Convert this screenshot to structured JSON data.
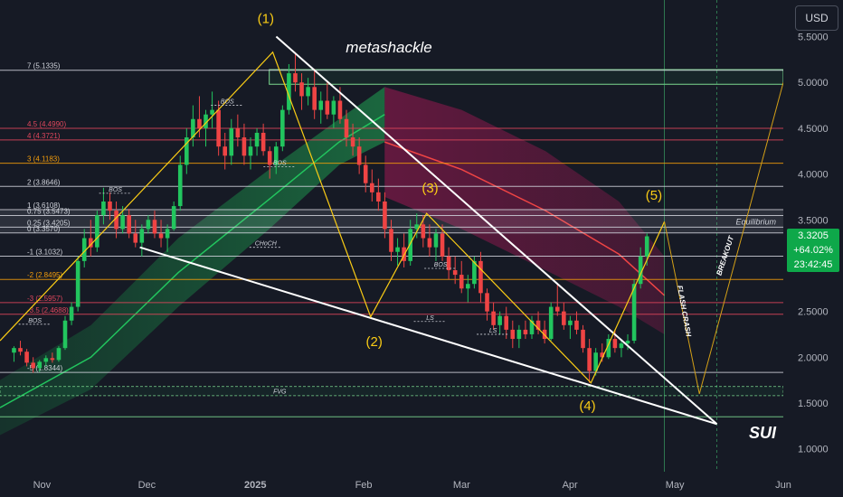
{
  "currency_button": "USD",
  "brand": "metashackle",
  "symbol": "SUI",
  "price_tag": {
    "price": "3.3205",
    "change": "+64.02%",
    "countdown": "23:42:45"
  },
  "colors": {
    "background": "#161a25",
    "up": "#22c55e",
    "down": "#ef4444",
    "fib_white": "#d1d4dc",
    "fib_red": "#e0475c",
    "fib_orange": "#f59e0b",
    "fib_green": "#7bd88f",
    "wave": "#facc15"
  },
  "chart_data": {
    "type": "candlestick",
    "symbol": "SUI",
    "y_axis_ticks": [
      1.0,
      1.5,
      2.0,
      2.5,
      3.0,
      3.5,
      4.0,
      4.5,
      5.0,
      5.5
    ],
    "ylim": [
      0.75,
      5.9
    ],
    "x_axis_labels": [
      "Nov",
      "Dec",
      "2025",
      "Feb",
      "Mar",
      "Apr",
      "May",
      "Jun"
    ],
    "x_label_dates": [
      "2024-11-01",
      "2024-12-01",
      "2025-01-01",
      "2025-02-01",
      "2025-03-01",
      "2025-04-01",
      "2025-05-01",
      "2025-06-01"
    ],
    "xlim": [
      "2024-10-20",
      "2025-06-01"
    ],
    "last_price": 3.3205,
    "change_pct": "+64.02%",
    "fib_levels": [
      {
        "label": "7 (5.1335)",
        "value": 5.1335,
        "color": "white"
      },
      {
        "label": "4.5 (4.4990)",
        "value": 4.499,
        "color": "red"
      },
      {
        "label": "4 (4.3721)",
        "value": 4.3721,
        "color": "red"
      },
      {
        "label": "3 (4.1183)",
        "value": 4.1183,
        "color": "orange"
      },
      {
        "label": "2 (3.8646)",
        "value": 3.8646,
        "color": "white"
      },
      {
        "label": "1 (3.6108)",
        "value": 3.6108,
        "color": "white"
      },
      {
        "label": "0.75 (3.5473)",
        "value": 3.5473,
        "color": "white"
      },
      {
        "label": "0.25 (3.4205)",
        "value": 3.4205,
        "color": "white"
      },
      {
        "label": "0 (3.3570)",
        "value": 3.357,
        "color": "white"
      },
      {
        "label": "-1 (3.1032)",
        "value": 3.1032,
        "color": "white"
      },
      {
        "label": "-2 (2.8495)",
        "value": 2.8495,
        "color": "orange"
      },
      {
        "label": "-3 (2.5957)",
        "value": 2.5957,
        "color": "red"
      },
      {
        "label": "-3.5 (2.4688)",
        "value": 2.4688,
        "color": "red"
      },
      {
        "label": "-5 (1.8344)",
        "value": 1.8344,
        "color": "white"
      }
    ],
    "wave_labels": [
      {
        "label": "(1)",
        "date": "2025-01-04",
        "value": 5.65
      },
      {
        "label": "(2)",
        "date": "2025-02-04",
        "value": 2.12
      },
      {
        "label": "(3)",
        "date": "2025-02-20",
        "value": 3.8
      },
      {
        "label": "(4)",
        "date": "2025-04-06",
        "value": 1.42
      },
      {
        "label": "(5)",
        "date": "2025-04-25",
        "value": 3.72
      }
    ],
    "wave_path": [
      {
        "date": "2024-10-20",
        "value": 2.18
      },
      {
        "date": "2025-01-06",
        "value": 5.33
      },
      {
        "date": "2025-02-03",
        "value": 2.44
      },
      {
        "date": "2025-02-19",
        "value": 3.57
      },
      {
        "date": "2025-04-07",
        "value": 1.72
      },
      {
        "date": "2025-04-28",
        "value": 3.48
      }
    ],
    "projection_path": [
      {
        "date": "2025-04-28",
        "value": 3.48
      },
      {
        "date": "2025-05-08",
        "value": 1.6
      },
      {
        "date": "2025-06-01",
        "value": 5.0
      }
    ],
    "projection_labels": [
      {
        "label": "FLASH CRASH",
        "date": "2025-05-03",
        "value": 2.5
      },
      {
        "label": "BREAKOUT",
        "date": "2025-05-16",
        "value": 3.1
      }
    ],
    "wedge_upper": [
      {
        "date": "2025-01-07",
        "value": 5.5
      },
      {
        "date": "2025-05-13",
        "value": 1.27
      }
    ],
    "wedge_lower": [
      {
        "date": "2024-11-29",
        "value": 3.2
      },
      {
        "date": "2025-05-13",
        "value": 1.27
      }
    ],
    "equilibrium": {
      "label": "Equilibrium",
      "value": 3.48
    },
    "fvg": {
      "label": "FVG",
      "low": 1.58,
      "high": 1.68
    },
    "range_box": {
      "low": 4.98,
      "high": 5.14
    },
    "annotations": [
      {
        "label": "BOS",
        "date": "2024-10-30",
        "value": 2.36
      },
      {
        "label": "BOS",
        "date": "2024-11-22",
        "value": 3.79
      },
      {
        "label": "BOS",
        "date": "2024-12-24",
        "value": 4.75
      },
      {
        "label": "BOS",
        "date": "2025-01-08",
        "value": 4.08
      },
      {
        "label": "CHoCH",
        "date": "2025-01-04",
        "value": 3.2
      },
      {
        "label": "BOS",
        "date": "2025-02-23",
        "value": 2.97
      },
      {
        "label": "LS",
        "date": "2025-02-20",
        "value": 2.39
      },
      {
        "label": "LS",
        "date": "2025-03-10",
        "value": 2.25
      }
    ],
    "candles": [
      [
        2.05,
        2.12,
        1.95,
        2.1
      ],
      [
        2.1,
        2.18,
        2.02,
        2.06
      ],
      [
        2.06,
        2.09,
        1.9,
        1.94
      ],
      [
        1.94,
        2.0,
        1.83,
        1.88
      ],
      [
        1.88,
        1.97,
        1.84,
        1.95
      ],
      [
        1.95,
        2.02,
        1.9,
        1.99
      ],
      [
        1.99,
        2.05,
        1.94,
        1.97
      ],
      [
        1.97,
        2.12,
        1.95,
        2.1
      ],
      [
        2.1,
        2.45,
        2.08,
        2.4
      ],
      [
        2.4,
        2.6,
        2.35,
        2.55
      ],
      [
        2.55,
        3.1,
        2.5,
        3.05
      ],
      [
        3.05,
        3.4,
        2.98,
        3.3
      ],
      [
        3.3,
        3.5,
        3.1,
        3.2
      ],
      [
        3.2,
        3.6,
        3.15,
        3.55
      ],
      [
        3.55,
        3.85,
        3.45,
        3.7
      ],
      [
        3.7,
        3.8,
        3.5,
        3.6
      ],
      [
        3.6,
        3.7,
        3.3,
        3.4
      ],
      [
        3.4,
        3.65,
        3.35,
        3.55
      ],
      [
        3.55,
        3.62,
        3.3,
        3.35
      ],
      [
        3.35,
        3.5,
        3.2,
        3.25
      ],
      [
        3.25,
        3.45,
        3.1,
        3.4
      ],
      [
        3.4,
        3.55,
        3.35,
        3.5
      ],
      [
        3.5,
        3.6,
        3.3,
        3.35
      ],
      [
        3.35,
        3.5,
        3.2,
        3.3
      ],
      [
        3.3,
        3.45,
        3.15,
        3.4
      ],
      [
        3.4,
        3.7,
        3.38,
        3.65
      ],
      [
        3.65,
        4.2,
        3.6,
        4.1
      ],
      [
        4.1,
        4.5,
        4.0,
        4.4
      ],
      [
        4.4,
        4.75,
        4.3,
        4.6
      ],
      [
        4.6,
        4.85,
        4.4,
        4.5
      ],
      [
        4.5,
        4.7,
        4.3,
        4.65
      ],
      [
        4.65,
        4.9,
        4.5,
        4.7
      ],
      [
        4.7,
        4.8,
        4.2,
        4.3
      ],
      [
        4.3,
        4.45,
        4.05,
        4.2
      ],
      [
        4.2,
        4.6,
        4.1,
        4.5
      ],
      [
        4.5,
        4.65,
        4.3,
        4.4
      ],
      [
        4.4,
        4.55,
        4.1,
        4.2
      ],
      [
        4.2,
        4.4,
        4.05,
        4.3
      ],
      [
        4.3,
        4.5,
        4.2,
        4.45
      ],
      [
        4.45,
        4.55,
        4.2,
        4.25
      ],
      [
        4.25,
        4.3,
        3.95,
        4.1
      ],
      [
        4.1,
        4.35,
        4.0,
        4.3
      ],
      [
        4.3,
        4.75,
        4.25,
        4.7
      ],
      [
        4.7,
        5.2,
        4.65,
        5.1
      ],
      [
        5.1,
        5.33,
        4.9,
        5.0
      ],
      [
        5.0,
        5.1,
        4.7,
        4.85
      ],
      [
        4.85,
        5.05,
        4.75,
        4.95
      ],
      [
        4.95,
        5.15,
        4.6,
        4.7
      ],
      [
        4.7,
        4.9,
        4.55,
        4.8
      ],
      [
        4.8,
        5.0,
        4.6,
        4.65
      ],
      [
        4.65,
        4.85,
        4.5,
        4.8
      ],
      [
        4.8,
        4.95,
        4.55,
        4.6
      ],
      [
        4.6,
        4.7,
        4.3,
        4.4
      ],
      [
        4.4,
        4.55,
        4.2,
        4.3
      ],
      [
        4.3,
        4.4,
        4.0,
        4.1
      ],
      [
        4.1,
        4.2,
        3.8,
        3.9
      ],
      [
        3.9,
        4.05,
        3.7,
        3.8
      ],
      [
        3.8,
        3.95,
        3.6,
        3.7
      ],
      [
        3.7,
        3.8,
        3.3,
        3.4
      ],
      [
        3.4,
        3.5,
        3.05,
        3.15
      ],
      [
        3.15,
        3.3,
        3.0,
        3.2
      ],
      [
        3.2,
        3.35,
        2.98,
        3.05
      ],
      [
        3.05,
        3.5,
        3.0,
        3.4
      ],
      [
        3.4,
        3.57,
        3.3,
        3.45
      ],
      [
        3.45,
        3.55,
        3.2,
        3.3
      ],
      [
        3.3,
        3.45,
        3.1,
        3.2
      ],
      [
        3.2,
        3.4,
        3.05,
        3.35
      ],
      [
        3.35,
        3.45,
        3.05,
        3.1
      ],
      [
        3.1,
        3.2,
        2.85,
        2.95
      ],
      [
        2.95,
        3.1,
        2.8,
        2.9
      ],
      [
        2.9,
        3.05,
        2.7,
        2.75
      ],
      [
        2.75,
        2.9,
        2.6,
        2.8
      ],
      [
        2.8,
        3.1,
        2.75,
        3.05
      ],
      [
        3.05,
        3.15,
        2.6,
        2.7
      ],
      [
        2.7,
        2.75,
        2.4,
        2.5
      ],
      [
        2.5,
        2.6,
        2.3,
        2.35
      ],
      [
        2.35,
        2.5,
        2.25,
        2.45
      ],
      [
        2.45,
        2.55,
        2.2,
        2.3
      ],
      [
        2.3,
        2.4,
        2.1,
        2.2
      ],
      [
        2.2,
        2.35,
        2.1,
        2.3
      ],
      [
        2.3,
        2.4,
        2.2,
        2.25
      ],
      [
        2.25,
        2.45,
        2.2,
        2.4
      ],
      [
        2.4,
        2.5,
        2.25,
        2.3
      ],
      [
        2.3,
        2.4,
        2.15,
        2.2
      ],
      [
        2.2,
        2.6,
        2.18,
        2.55
      ],
      [
        2.55,
        2.8,
        2.45,
        2.5
      ],
      [
        2.5,
        2.6,
        2.3,
        2.35
      ],
      [
        2.35,
        2.45,
        2.2,
        2.4
      ],
      [
        2.4,
        2.5,
        2.25,
        2.3
      ],
      [
        2.3,
        2.35,
        2.05,
        2.1
      ],
      [
        2.1,
        2.2,
        1.72,
        1.85
      ],
      [
        1.85,
        2.1,
        1.8,
        2.05
      ],
      [
        2.05,
        2.15,
        1.95,
        2.0
      ],
      [
        2.0,
        2.25,
        1.98,
        2.2
      ],
      [
        2.2,
        2.3,
        2.05,
        2.1
      ],
      [
        2.1,
        2.2,
        2.0,
        2.15
      ],
      [
        2.15,
        2.25,
        2.08,
        2.18
      ],
      [
        2.18,
        2.85,
        2.15,
        2.8
      ],
      [
        2.8,
        3.2,
        2.75,
        3.1
      ],
      [
        3.1,
        3.35,
        3.0,
        3.32
      ]
    ]
  }
}
